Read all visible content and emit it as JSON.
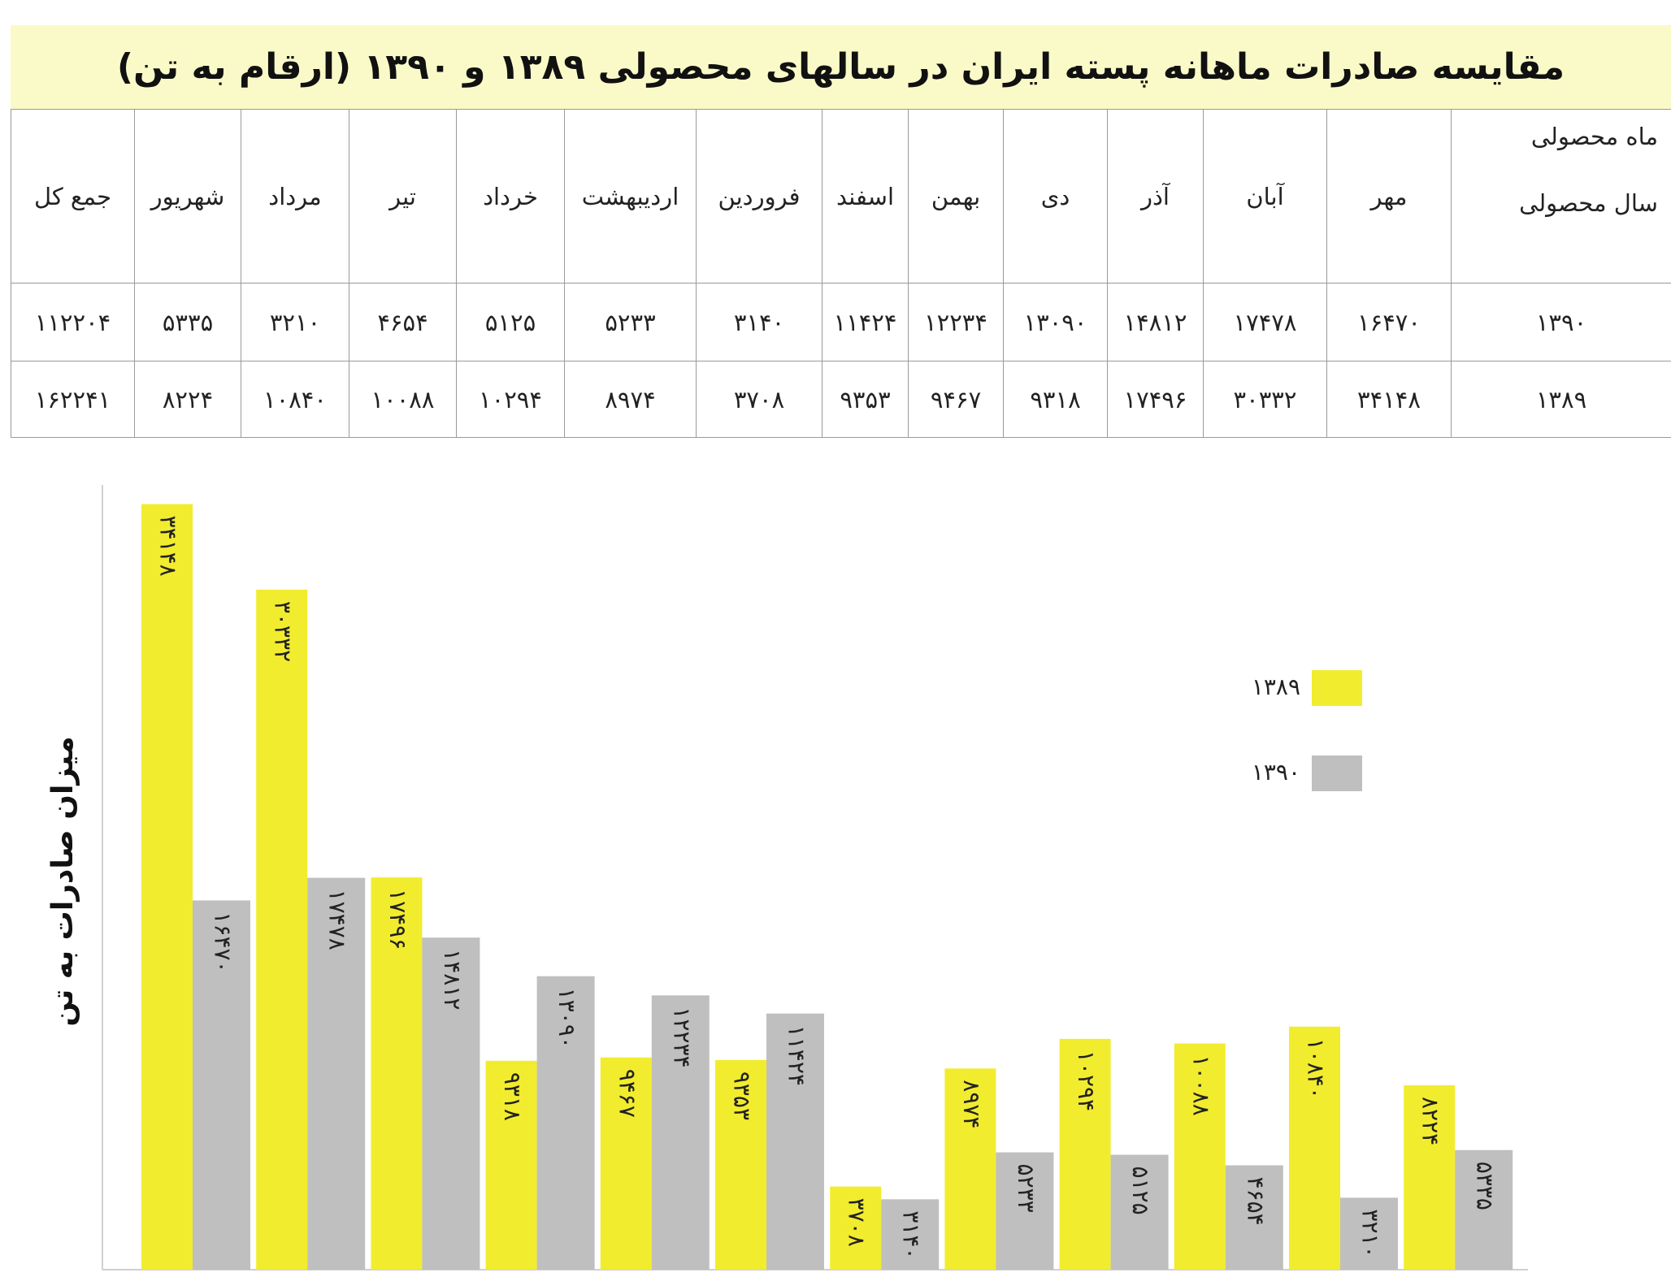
{
  "header": {
    "title": "مقایسه صادرات ماهانه پسته ایران در سالهای محصولی ۱۳۸۹ و ۱۳۹۰ (ارقام به تن)"
  },
  "table": {
    "corner_top": "ماه محصولی",
    "corner_bottom": "سال محصولی",
    "columns": [
      "مهر",
      "آبان",
      "آذر",
      "دی",
      "بهمن",
      "اسفند",
      "فروردین",
      "اردیبهشت",
      "خرداد",
      "تیر",
      "مرداد",
      "شهریور",
      "جمع کل"
    ],
    "rows": [
      [
        "۱۳۹۰",
        "۱۶۴۷۰",
        "۱۷۴۷۸",
        "۱۴۸۱۲",
        "۱۳۰۹۰",
        "۱۲۲۳۴",
        "۱۱۴۲۴",
        "۳۱۴۰",
        "۵۲۳۳",
        "۵۱۲۵",
        "۴۶۵۴",
        "۳۲۱۰",
        "۵۳۳۵",
        "۱۱۲۲۰۴"
      ],
      [
        "۱۳۸۹",
        "۳۴۱۴۸",
        "۳۰۳۳۲",
        "۱۷۴۹۶",
        "۹۳۱۸",
        "۹۴۶۷",
        "۹۳۵۳",
        "۳۷۰۸",
        "۸۹۷۴",
        "۱۰۲۹۴",
        "۱۰۰۸۸",
        "۱۰۸۴۰",
        "۸۲۲۴",
        "۱۶۲۲۴۱"
      ]
    ]
  },
  "chart_data": {
    "type": "bar",
    "y_label": "میزان صادرات به تن",
    "ylim": [
      0,
      35000
    ],
    "legend": "right",
    "series": [
      {
        "name": "۱۳۸۹",
        "color": "#f2ec2e",
        "values": [
          34148,
          30332,
          17496,
          9318,
          9467,
          9353,
          3708,
          8974,
          10294,
          10088,
          10840,
          8224
        ],
        "value_labels": [
          "۳۴۱۴۸",
          "۳۰۳۳۲",
          "۱۷۴۹۶",
          "۹۳۱۸",
          "۹۴۶۷",
          "۹۳۵۳",
          "۳۷۰۸",
          "۸۹۷۴",
          "۱۰۲۹۴",
          "۱۰۰۸۸",
          "۱۰۸۴۰",
          "۸۲۲۴"
        ]
      },
      {
        "name": "۱۳۹۰",
        "color": "#bfbfbf",
        "values": [
          16470,
          17478,
          14812,
          13090,
          12234,
          11424,
          3140,
          5233,
          5125,
          4654,
          3210,
          5335
        ],
        "value_labels": [
          "۱۶۴۷۰",
          "۱۷۴۷۸",
          "۱۴۸۱۲",
          "۱۳۰۹۰",
          "۱۲۲۳۴",
          "۱۱۴۲۴",
          "۳۱۴۰",
          "۵۲۳۳",
          "۵۱۲۵",
          "۴۶۵۴",
          "۳۲۱۰",
          "۵۳۳۵"
        ]
      }
    ]
  }
}
